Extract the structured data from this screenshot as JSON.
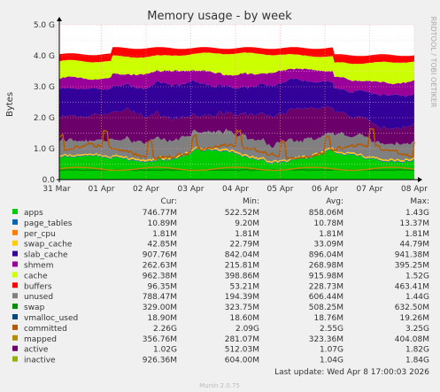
{
  "chart_data": {
    "type": "area",
    "title": "Memory usage - by week",
    "ylabel": "Bytes",
    "side_label": "RRDTOOL / TOBI OETIKER",
    "x_ticks": [
      "31 Mar",
      "01 Apr",
      "02 Apr",
      "03 Apr",
      "04 Apr",
      "05 Apr",
      "06 Apr",
      "07 Apr",
      "08 Apr"
    ],
    "y_ticks": [
      "0.0",
      "1.0 G",
      "2.0 G",
      "3.0 G",
      "4.0 G",
      "5.0 G"
    ],
    "ylim": [
      0,
      5.0
    ],
    "grid": true,
    "columns": [
      "Cur:",
      "Min:",
      "Avg:",
      "Max:"
    ],
    "series": [
      {
        "name": "apps",
        "color": "#00cc00",
        "cur": "746.77M",
        "min": "522.52M",
        "avg": "858.06M",
        "max": "1.43G"
      },
      {
        "name": "page_tables",
        "color": "#0066b3",
        "cur": "10.89M",
        "min": "9.20M",
        "avg": "10.78M",
        "max": "13.37M"
      },
      {
        "name": "per_cpu",
        "color": "#ff8000",
        "cur": "1.81M",
        "min": "1.81M",
        "avg": "1.81M",
        "max": "1.81M"
      },
      {
        "name": "swap_cache",
        "color": "#ffcc00",
        "cur": "42.85M",
        "min": "22.79M",
        "avg": "33.09M",
        "max": "44.79M"
      },
      {
        "name": "slab_cache",
        "color": "#330099",
        "cur": "907.76M",
        "min": "842.04M",
        "avg": "896.04M",
        "max": "941.38M"
      },
      {
        "name": "shmem",
        "color": "#990099",
        "cur": "262.63M",
        "min": "215.81M",
        "avg": "268.98M",
        "max": "395.25M"
      },
      {
        "name": "cache",
        "color": "#ccff00",
        "cur": "962.38M",
        "min": "398.86M",
        "avg": "915.98M",
        "max": "1.52G"
      },
      {
        "name": "buffers",
        "color": "#ff0000",
        "cur": "96.35M",
        "min": "53.21M",
        "avg": "228.73M",
        "max": "463.41M"
      },
      {
        "name": "unused",
        "color": "#808080",
        "cur": "788.47M",
        "min": "194.39M",
        "avg": "606.44M",
        "max": "1.44G"
      },
      {
        "name": "swap",
        "color": "#008f00",
        "cur": "329.00M",
        "min": "323.75M",
        "avg": "508.25M",
        "max": "632.50M"
      },
      {
        "name": "vmalloc_used",
        "color": "#00487d",
        "cur": "18.90M",
        "min": "18.60M",
        "avg": "18.76M",
        "max": "19.26M"
      },
      {
        "name": "committed",
        "color": "#b35a00",
        "cur": "2.26G",
        "min": "2.09G",
        "avg": "2.55G",
        "max": "3.25G"
      },
      {
        "name": "mapped",
        "color": "#b38f00",
        "cur": "356.76M",
        "min": "281.07M",
        "avg": "323.36M",
        "max": "404.08M"
      },
      {
        "name": "active",
        "color": "#6b006b",
        "cur": "1.02G",
        "min": "512.03M",
        "avg": "1.07G",
        "max": "1.82G"
      },
      {
        "name": "inactive",
        "color": "#8fb300",
        "cur": "926.36M",
        "min": "604.00M",
        "avg": "1.04G",
        "max": "1.84G"
      }
    ],
    "last_update": "Last update:  Wed Apr  8 17:00:03 2026",
    "footer": "Munin 2.0.75"
  }
}
